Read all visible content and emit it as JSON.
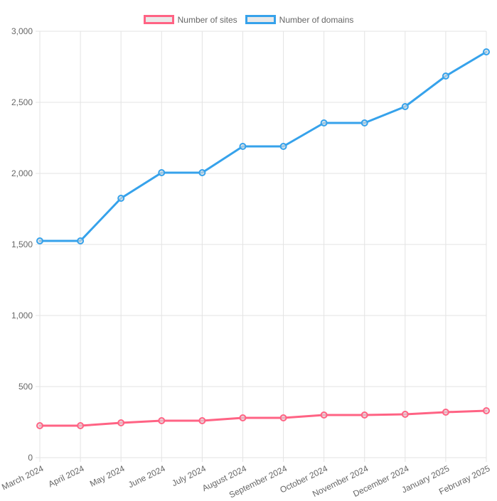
{
  "chart_data": {
    "type": "line",
    "x": [
      "March 2024",
      "April 2024",
      "May 2024",
      "June 2024",
      "July 2024",
      "August 2024",
      "September 2024",
      "October 2024",
      "November 2024",
      "December 2024",
      "January 2025",
      "Februray 2025"
    ],
    "series": [
      {
        "name": "Number of sites",
        "color": "#ff6384",
        "values": [
          225,
          225,
          245,
          260,
          260,
          280,
          280,
          300,
          300,
          305,
          320,
          330
        ]
      },
      {
        "name": "Number of domains",
        "color": "#36a2eb",
        "values": [
          1525,
          1525,
          1825,
          2005,
          2005,
          2190,
          2190,
          2355,
          2355,
          2470,
          2685,
          2855
        ]
      }
    ],
    "title": "",
    "xlabel": "",
    "ylabel": "",
    "ylim": [
      0,
      3000
    ],
    "yticks": [
      0,
      500,
      1000,
      1500,
      2000,
      2500,
      3000
    ],
    "ytick_labels": [
      "0",
      "500",
      "1,000",
      "1,500",
      "2,000",
      "2,500",
      "3,000"
    ],
    "grid": true,
    "legend_position": "top",
    "styles": {
      "grid_color": "#e3e3e3",
      "tick_label_color": "#666666",
      "tick_font_size": 12,
      "point_fill": "rgba(222,222,222,0.6)",
      "legend_box_fill": "#e9e9e9",
      "line_width": 3,
      "point_radius": 4,
      "x_label_rotation_deg": -26
    }
  }
}
